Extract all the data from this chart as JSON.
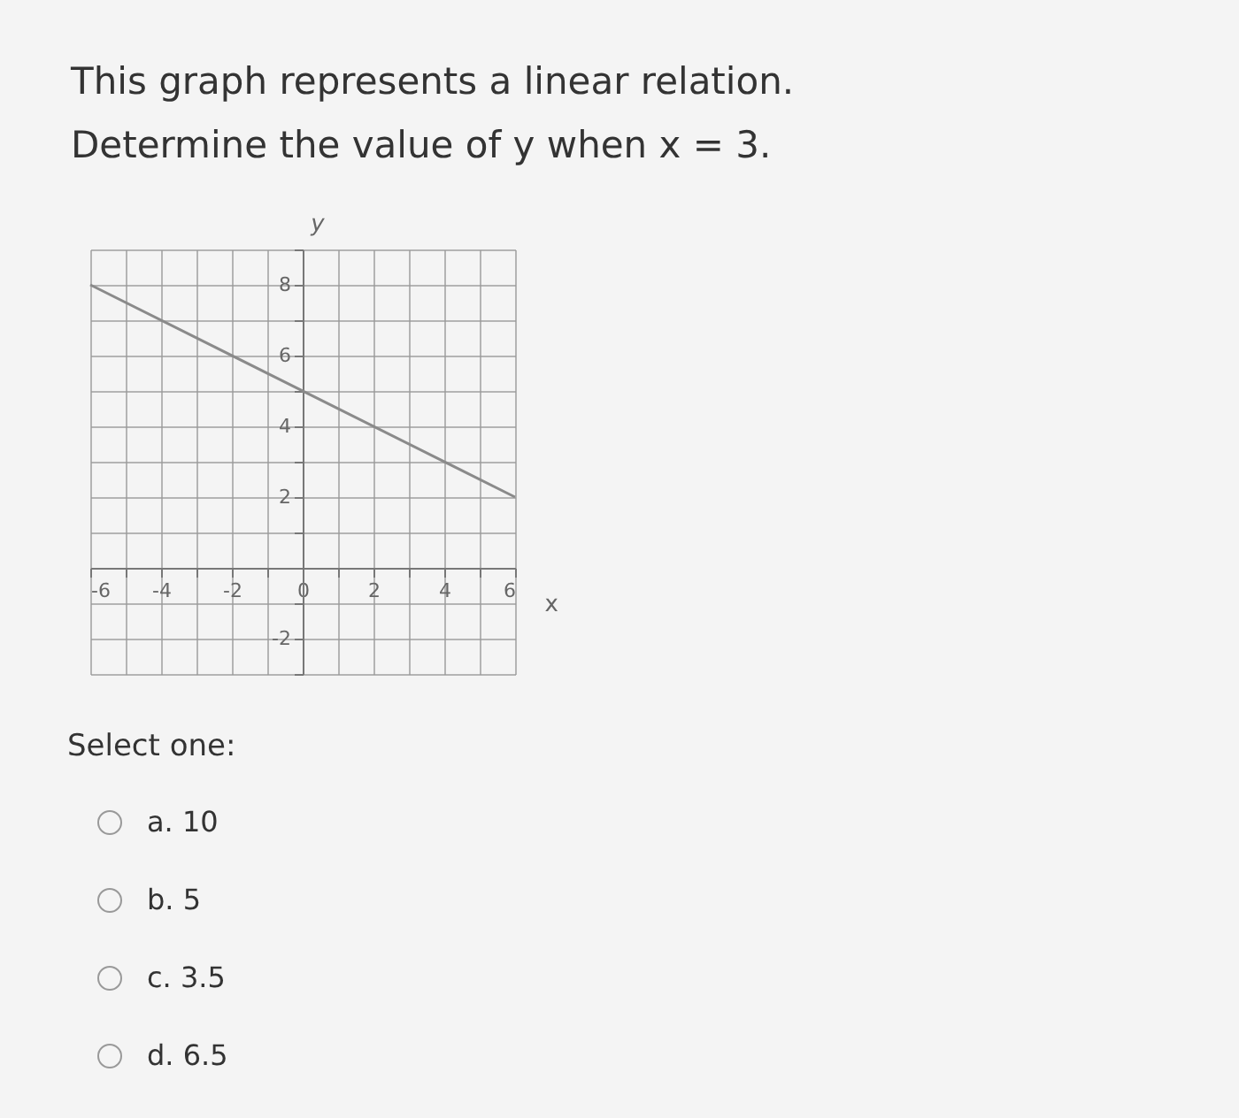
{
  "chart_data": {
    "type": "line",
    "title": "This graph represents a linear relation.",
    "subtitle": "Determine the value of y when x = 3.",
    "xlabel": "x",
    "ylabel": "y",
    "x": [
      -6,
      6
    ],
    "series": [
      {
        "color": "#8a8a8a",
        "values": [
          8,
          2
        ]
      }
    ],
    "xlim": [
      -6,
      6
    ],
    "ylim": [
      -3,
      9
    ],
    "xticks": [
      -6,
      {
        "value": -5,
        "label": null
      },
      -4,
      {
        "value": -3,
        "label": null
      },
      -2,
      {
        "value": -1,
        "label": null
      },
      0,
      {
        "value": 1,
        "label": null
      },
      2,
      {
        "value": 3,
        "label": null
      },
      4,
      {
        "value": 5,
        "label": null
      },
      6
    ],
    "yticks": [
      {
        "value": -3,
        "label": null
      },
      -2,
      {
        "value": -1,
        "label": null
      },
      {
        "value": 0,
        "label": null
      },
      {
        "value": 1,
        "label": null
      },
      2,
      {
        "value": 3,
        "label": null
      },
      4,
      {
        "value": 5,
        "label": null
      },
      6,
      {
        "value": 7,
        "label": null
      },
      8,
      {
        "value": 9,
        "label": null
      }
    ],
    "grid": true,
    "marker": "none",
    "line_style": "solid",
    "annotations": [
      "Select one:",
      "a. 10",
      "b. 5",
      "c. 3.5",
      "d. 6.5"
    ]
  }
}
